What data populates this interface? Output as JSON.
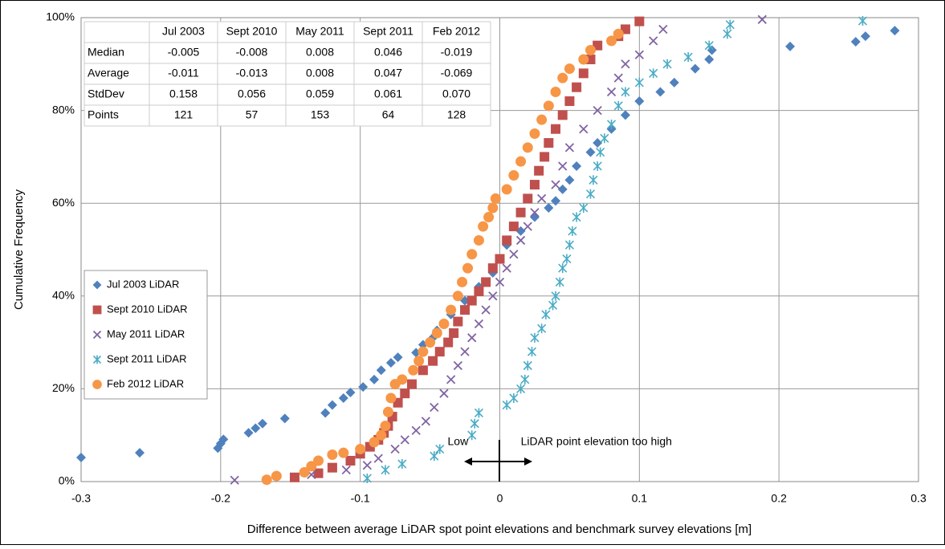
{
  "chart_data": {
    "type": "scatter",
    "x_label": "Difference between average LiDAR spot point elevations and benchmark survey elevations [m]",
    "y_label": "Cumulative Frequency",
    "xlim": [
      -0.3,
      0.3
    ],
    "xticks": [
      -0.3,
      -0.2,
      -0.1,
      0,
      0.1,
      0.2,
      0.3
    ],
    "ylim": [
      0,
      100
    ],
    "yticks": [
      {
        "value": 0,
        "label": "0%"
      },
      {
        "value": 20,
        "label": "20%"
      },
      {
        "value": 40,
        "label": "40%"
      },
      {
        "value": 60,
        "label": "60%"
      },
      {
        "value": 80,
        "label": "80%"
      },
      {
        "value": 100,
        "label": "100%"
      }
    ],
    "grid": true,
    "legend": "left",
    "series": [
      {
        "name": "Jul 2003 LiDAR",
        "color": "#4f81bd",
        "marker": "diamond",
        "x": [
          -0.3,
          -0.258,
          -0.202,
          -0.2,
          -0.198,
          -0.18,
          -0.175,
          -0.17,
          -0.154,
          -0.125,
          -0.12,
          -0.112,
          -0.107,
          -0.098,
          -0.09,
          -0.085,
          -0.078,
          -0.073,
          -0.06,
          -0.055,
          -0.048,
          -0.045,
          -0.035,
          -0.025,
          -0.015,
          -0.005,
          0,
          0.005,
          0.015,
          0.025,
          0.035,
          0.04,
          0.045,
          0.05,
          0.055,
          0.065,
          0.07,
          0.08,
          0.09,
          0.1,
          0.115,
          0.125,
          0.14,
          0.15,
          0.152,
          0.208,
          0.255,
          0.262,
          0.283
        ],
        "values": [
          5.2,
          6.2,
          7.2,
          8.2,
          9.1,
          10.5,
          11.5,
          12.5,
          13.6,
          14.8,
          16.5,
          18,
          19.2,
          20.4,
          22,
          24,
          25.6,
          26.8,
          27.8,
          29.5,
          31,
          32.6,
          36,
          39,
          42,
          45,
          48,
          51,
          54,
          57,
          59,
          60.5,
          63,
          65,
          68,
          71,
          73,
          76,
          79,
          82,
          84,
          86,
          89,
          91,
          93,
          93.8,
          94.8,
          96,
          97.2
        ]
      },
      {
        "name": "Sept 2010 LiDAR",
        "color": "#c0504d",
        "marker": "square",
        "x": [
          -0.147,
          -0.13,
          -0.12,
          -0.107,
          -0.1,
          -0.093,
          -0.087,
          -0.083,
          -0.08,
          -0.077,
          -0.073,
          -0.068,
          -0.063,
          -0.055,
          -0.048,
          -0.043,
          -0.037,
          -0.033,
          -0.03,
          -0.025,
          -0.02,
          -0.015,
          -0.01,
          -0.005,
          0,
          0.005,
          0.01,
          0.015,
          0.02,
          0.025,
          0.028,
          0.032,
          0.035,
          0.04,
          0.045,
          0.05,
          0.055,
          0.06,
          0.065,
          0.07,
          0.085,
          0.09,
          0.1
        ],
        "values": [
          0.9,
          1.8,
          3,
          4.5,
          6,
          7.5,
          9,
          10.5,
          12,
          14,
          17,
          19,
          21,
          24,
          26,
          28,
          30,
          32,
          34.5,
          37,
          39,
          41,
          43,
          46,
          48,
          52,
          55,
          58,
          61,
          64,
          67,
          70,
          73,
          76,
          79,
          82,
          85,
          88,
          91,
          94,
          96,
          97.5,
          99.2
        ]
      },
      {
        "name": "May 2011 LiDAR",
        "color": "#8064a2",
        "marker": "x",
        "x": [
          -0.19,
          -0.135,
          -0.11,
          -0.095,
          -0.087,
          -0.075,
          -0.068,
          -0.06,
          -0.053,
          -0.047,
          -0.04,
          -0.035,
          -0.03,
          -0.025,
          -0.02,
          -0.015,
          -0.01,
          -0.005,
          0,
          0.005,
          0.01,
          0.015,
          0.02,
          0.025,
          0.03,
          0.04,
          0.045,
          0.05,
          0.06,
          0.07,
          0.08,
          0.085,
          0.09,
          0.1,
          0.11,
          0.117,
          0.188
        ],
        "values": [
          0.3,
          1.5,
          2.5,
          3.5,
          5,
          7,
          9,
          11,
          13,
          16,
          19,
          22,
          25,
          28,
          31,
          34,
          37,
          40,
          43,
          46,
          49,
          52,
          55,
          58,
          61,
          64,
          68,
          72,
          76,
          80,
          84,
          87,
          90,
          92,
          95,
          97.5,
          99.6
        ]
      },
      {
        "name": "Sept 2011 LiDAR",
        "color": "#4bacc6",
        "marker": "star",
        "x": [
          -0.095,
          -0.082,
          -0.07,
          -0.047,
          -0.043,
          -0.02,
          -0.018,
          -0.015,
          0.005,
          0.01,
          0.015,
          0.018,
          0.02,
          0.023,
          0.025,
          0.03,
          0.033,
          0.038,
          0.04,
          0.043,
          0.045,
          0.048,
          0.05,
          0.052,
          0.055,
          0.06,
          0.065,
          0.067,
          0.07,
          0.072,
          0.075,
          0.08,
          0.085,
          0.09,
          0.1,
          0.11,
          0.12,
          0.135,
          0.15,
          0.163,
          0.165,
          0.26
        ],
        "values": [
          0.7,
          2.5,
          3.8,
          5.5,
          7,
          10,
          12.5,
          14.8,
          16.5,
          18,
          20,
          22,
          25,
          28,
          31,
          33,
          36,
          38,
          40,
          43,
          46,
          48,
          51,
          54,
          57,
          59,
          62,
          65,
          68,
          71,
          74,
          77,
          81,
          84,
          86,
          88,
          90,
          91.5,
          94,
          96.5,
          98.5,
          99.3
        ]
      },
      {
        "name": "Feb 2012 LiDAR",
        "color": "#f79646",
        "marker": "circle",
        "x": [
          -0.167,
          -0.16,
          -0.14,
          -0.135,
          -0.13,
          -0.12,
          -0.112,
          -0.1,
          -0.09,
          -0.085,
          -0.082,
          -0.08,
          -0.078,
          -0.075,
          -0.07,
          -0.062,
          -0.058,
          -0.055,
          -0.05,
          -0.045,
          -0.04,
          -0.035,
          -0.03,
          -0.027,
          -0.023,
          -0.02,
          -0.015,
          -0.012,
          -0.008,
          -0.005,
          -0.003,
          0.005,
          0.01,
          0.015,
          0.02,
          0.025,
          0.03,
          0.035,
          0.04,
          0.045,
          0.05,
          0.06,
          0.065,
          0.08,
          0.085
        ],
        "values": [
          0.4,
          1.2,
          2,
          3.3,
          4.5,
          5.8,
          6.2,
          7,
          8.5,
          10,
          12,
          15,
          18,
          21,
          22,
          24,
          26,
          28,
          30,
          32,
          34,
          37,
          40,
          43,
          46,
          49,
          52,
          55,
          57,
          59,
          61,
          63,
          66,
          69,
          72,
          75,
          78,
          81,
          84,
          87,
          89,
          91,
          93,
          95,
          96.5
        ]
      }
    ],
    "table": {
      "columns": [
        "Jul 2003",
        "Sept 2010",
        "May 2011",
        "Sept 2011",
        "Feb 2012"
      ],
      "rows": [
        {
          "label": "Median",
          "cells": [
            "-0.005",
            "-0.008",
            "0.008",
            "0.046",
            "-0.019"
          ]
        },
        {
          "label": "Average",
          "cells": [
            "-0.011",
            "-0.013",
            "0.008",
            "0.047",
            "-0.069"
          ]
        },
        {
          "label": "StdDev",
          "cells": [
            "0.158",
            "0.056",
            "0.059",
            "0.061",
            "0.070"
          ]
        },
        {
          "label": "Points",
          "cells": [
            "121",
            "57",
            "153",
            "64",
            "128"
          ]
        }
      ]
    },
    "annotations": [
      {
        "text": "Low",
        "x": -0.03,
        "y": 8.5
      },
      {
        "text": "LiDAR point elevation too high",
        "x": 0.015,
        "y": 8.5
      }
    ]
  }
}
